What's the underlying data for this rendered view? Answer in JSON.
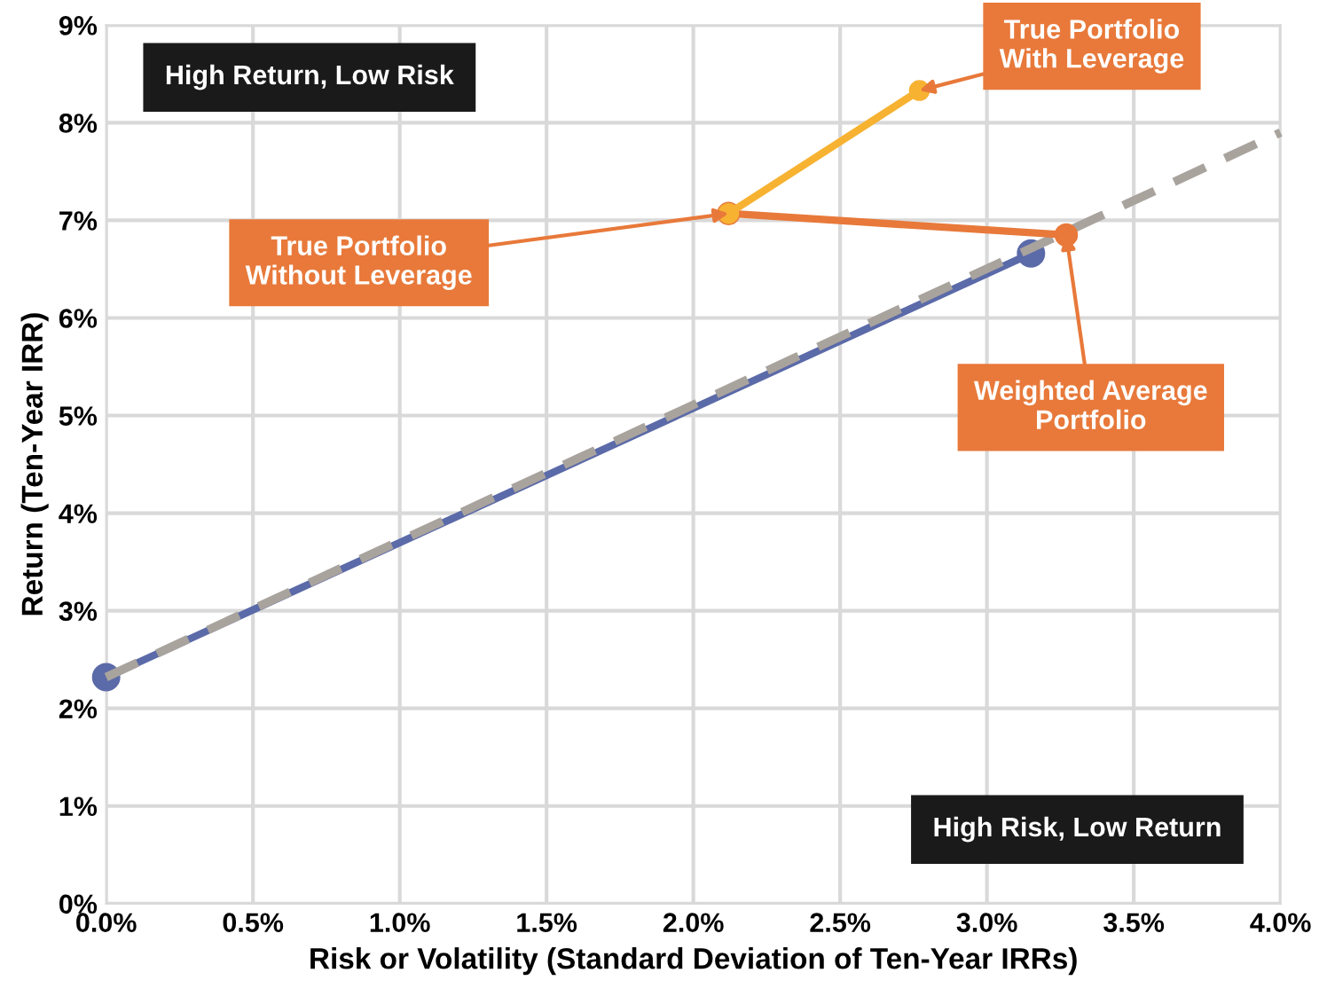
{
  "chart_data": {
    "type": "line",
    "xlabel": "Risk or Volatility (Standard Deviation of Ten-Year IRRs)",
    "ylabel": "Return (Ten-Year IRR)",
    "xlim": [
      0,
      4
    ],
    "ylim": [
      0,
      9
    ],
    "xticks": [
      {
        "value": 0,
        "label": "0.0%"
      },
      {
        "value": 0.5,
        "label": "0.5%"
      },
      {
        "value": 1,
        "label": "1.0%"
      },
      {
        "value": 1.5,
        "label": "1.5%"
      },
      {
        "value": 2,
        "label": "2.0%"
      },
      {
        "value": 2.5,
        "label": "2.5%"
      },
      {
        "value": 3,
        "label": "3.0%"
      },
      {
        "value": 3.5,
        "label": "3.5%"
      },
      {
        "value": 4,
        "label": "4.0%"
      }
    ],
    "yticks": [
      {
        "value": 0,
        "label": "0%"
      },
      {
        "value": 1,
        "label": "1%"
      },
      {
        "value": 2,
        "label": "2%"
      },
      {
        "value": 3,
        "label": "3%"
      },
      {
        "value": 4,
        "label": "4%"
      },
      {
        "value": 5,
        "label": "5%"
      },
      {
        "value": 6,
        "label": "6%"
      },
      {
        "value": 7,
        "label": "7%"
      },
      {
        "value": 8,
        "label": "8%"
      },
      {
        "value": 9,
        "label": "9%"
      }
    ],
    "grid": true,
    "series": [
      {
        "color": "#5b6aa8",
        "x": [
          0,
          3.15
        ],
        "values": [
          2.32,
          6.66
        ],
        "marker": "circle",
        "line_style": "solid"
      },
      {
        "color": "#a9a39e",
        "x": [
          0,
          4.0
        ],
        "values": [
          2.32,
          7.9
        ],
        "marker": "none",
        "line_style": "dashed"
      },
      {
        "color": "#e8793a",
        "x": [
          2.12,
          3.27
        ],
        "values": [
          7.07,
          6.85
        ],
        "marker": "circle",
        "line_style": "solid"
      },
      {
        "color": "#f7b232",
        "x": [
          2.12,
          2.77
        ],
        "values": [
          7.07,
          8.33
        ],
        "marker": "circle",
        "line_style": "solid"
      }
    ],
    "annotations": [
      "High Return, Low Risk",
      "High Risk, Low Return",
      {
        "text": "True Portfolio\nWith Leverage",
        "x": 2.77,
        "y": 8.33
      },
      {
        "text": "True Portfolio\nWithout Leverage",
        "x": 2.12,
        "y": 7.07
      },
      {
        "text": "Weighted Average\nPortfolio",
        "x": 3.27,
        "y": 6.85
      }
    ]
  }
}
